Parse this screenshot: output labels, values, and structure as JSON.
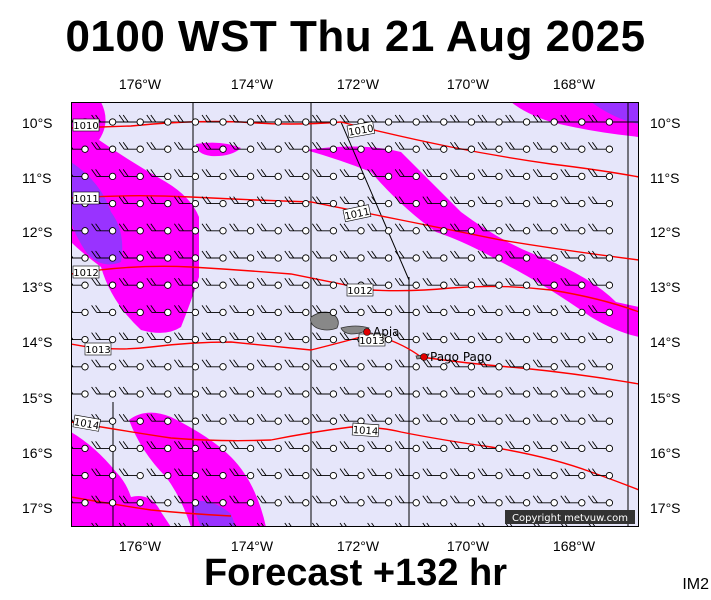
{
  "header": {
    "title": "0100 WST Thu 21 Aug 2025"
  },
  "footer": {
    "forecast": "Forecast +132 hr",
    "product_code": "IM2"
  },
  "copyright": "Copyright metvuw.com",
  "axes": {
    "lon_labels": [
      "176°W",
      "174°W",
      "172°W",
      "170°W",
      "168°W"
    ],
    "lat_labels": [
      "10°S",
      "11°S",
      "12°S",
      "13°S",
      "14°S",
      "15°S",
      "16°S",
      "17°S"
    ]
  },
  "places": [
    {
      "name": "Apia",
      "lon": -171.76,
      "lat": -13.83
    },
    {
      "name": "Pago Pago",
      "lon": -170.7,
      "lat": -14.28
    }
  ],
  "isobar_labels": [
    "1010",
    "1010",
    "1011",
    "1011",
    "1012",
    "1012",
    "1013",
    "1013",
    "1014",
    "1014"
  ],
  "colors": {
    "background": "#e6e6fa",
    "rain_light": "#ff00ff",
    "rain_heavy": "#9933ff",
    "isobar": "#ff0000",
    "grid": "#000000"
  }
}
